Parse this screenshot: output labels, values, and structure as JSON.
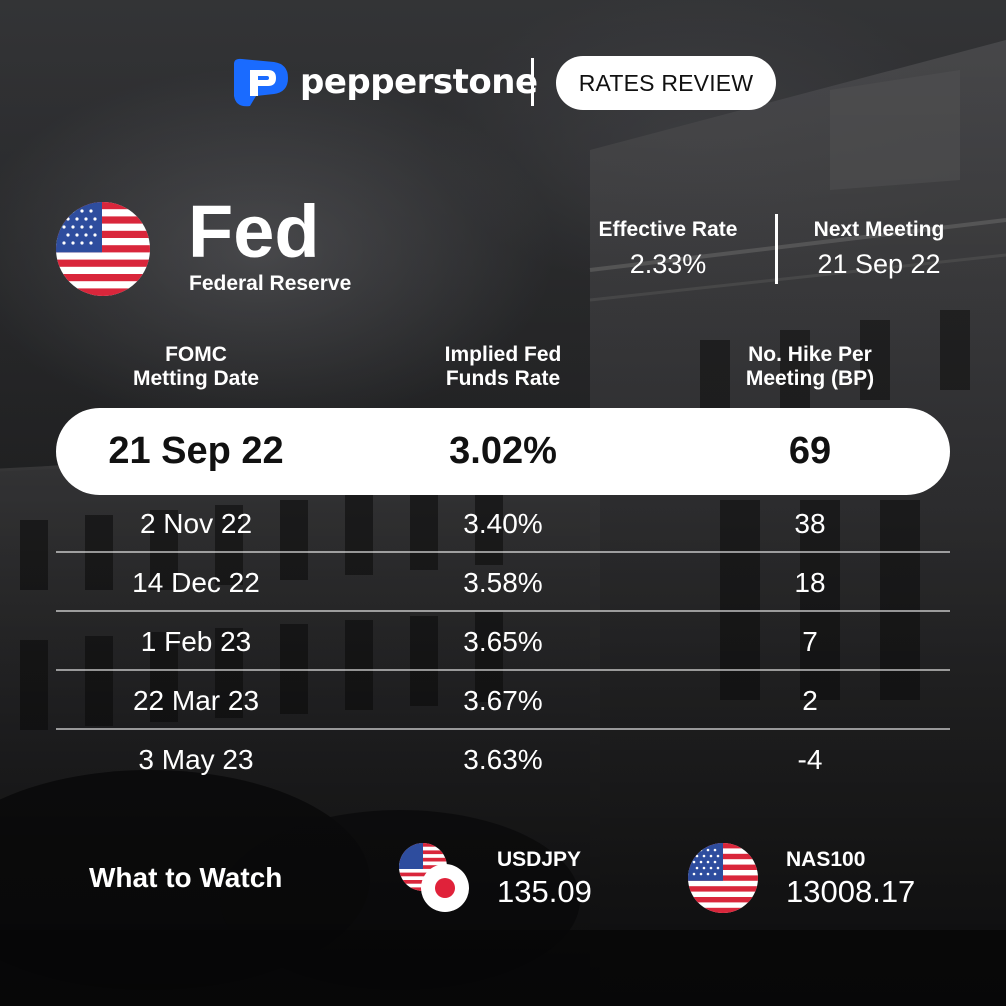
{
  "brand": {
    "name": "pepperstone",
    "badge": "RATES REVIEW"
  },
  "bank": {
    "code": "Fed",
    "name": "Federal Reserve",
    "flag_icon": "us-flag-icon",
    "stats": [
      {
        "label": "Effective Rate",
        "value": "2.33%"
      },
      {
        "label": "Next Meeting",
        "value": "21 Sep 22"
      }
    ]
  },
  "table": {
    "headers": [
      [
        "FOMC",
        "Metting Date"
      ],
      [
        "Implied Fed",
        "Funds Rate"
      ],
      [
        "No. Hike Per",
        "Meeting (BP)"
      ]
    ],
    "highlight": {
      "date": "21 Sep 22",
      "rate": "3.02%",
      "hike": "69"
    },
    "rows": [
      {
        "date": "2 Nov 22",
        "rate": "3.40%",
        "hike": "38"
      },
      {
        "date": "14 Dec 22",
        "rate": "3.58%",
        "hike": "18"
      },
      {
        "date": "1 Feb 23",
        "rate": "3.65%",
        "hike": "7"
      },
      {
        "date": "22 Mar 23",
        "rate": "3.67%",
        "hike": "2"
      },
      {
        "date": "3 May 23",
        "rate": "3.63%",
        "hike": "-4"
      }
    ]
  },
  "watch": {
    "title": "What to Watch",
    "items": [
      {
        "label": "USDJPY",
        "value": "135.09",
        "icons": [
          "us-flag-icon",
          "japan-flag-icon"
        ]
      },
      {
        "label": "NAS100",
        "value": "13008.17",
        "icons": [
          "us-flag-icon"
        ]
      }
    ]
  },
  "colors": {
    "brand_blue": "#1a6bff",
    "jp_red": "#e0223a",
    "us_red": "#d9263b",
    "us_blue": "#2e4d9e"
  }
}
